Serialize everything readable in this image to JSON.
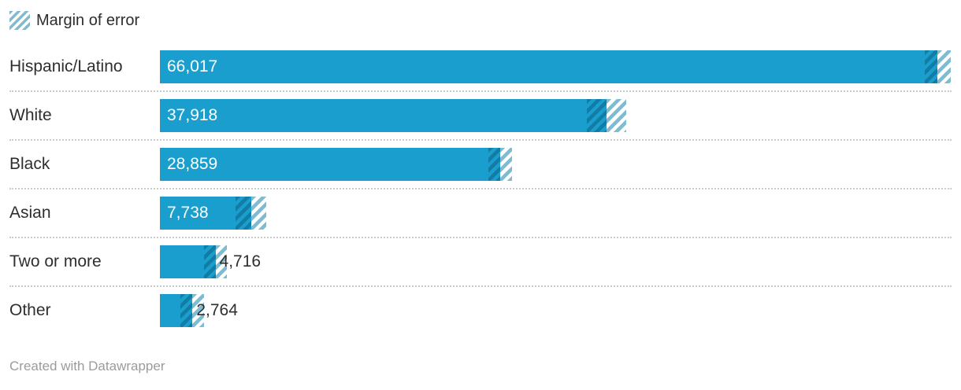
{
  "legend": {
    "label": "Margin of error"
  },
  "footer": {
    "credit": "Created with Datawrapper"
  },
  "colors": {
    "bar": "#1a9ecd",
    "text": "#2e2e2e",
    "stripe_light": "#7fbcd1",
    "stripe_dark": "rgba(0,45,70,0.30)",
    "separator": "#cccccc",
    "credit": "#9b9b9b"
  },
  "chart_data": {
    "type": "bar",
    "orientation": "horizontal",
    "title": "",
    "legend": "Margin of error",
    "legend_position": "top-left",
    "grid": false,
    "xlim": [
      0,
      67200
    ],
    "categories": [
      "Hispanic/Latino",
      "White",
      "Black",
      "Asian",
      "Two or more",
      "Other"
    ],
    "values": [
      66017,
      37918,
      28859,
      7738,
      4716,
      2764
    ],
    "value_labels": [
      "66,017",
      "37,918",
      "28,859",
      "7,738",
      "4,716",
      "2,764"
    ],
    "margins_of_error": [
      1100,
      1700,
      1000,
      1300,
      1000,
      1000
    ],
    "label_inside": [
      true,
      true,
      true,
      true,
      false,
      false
    ]
  }
}
